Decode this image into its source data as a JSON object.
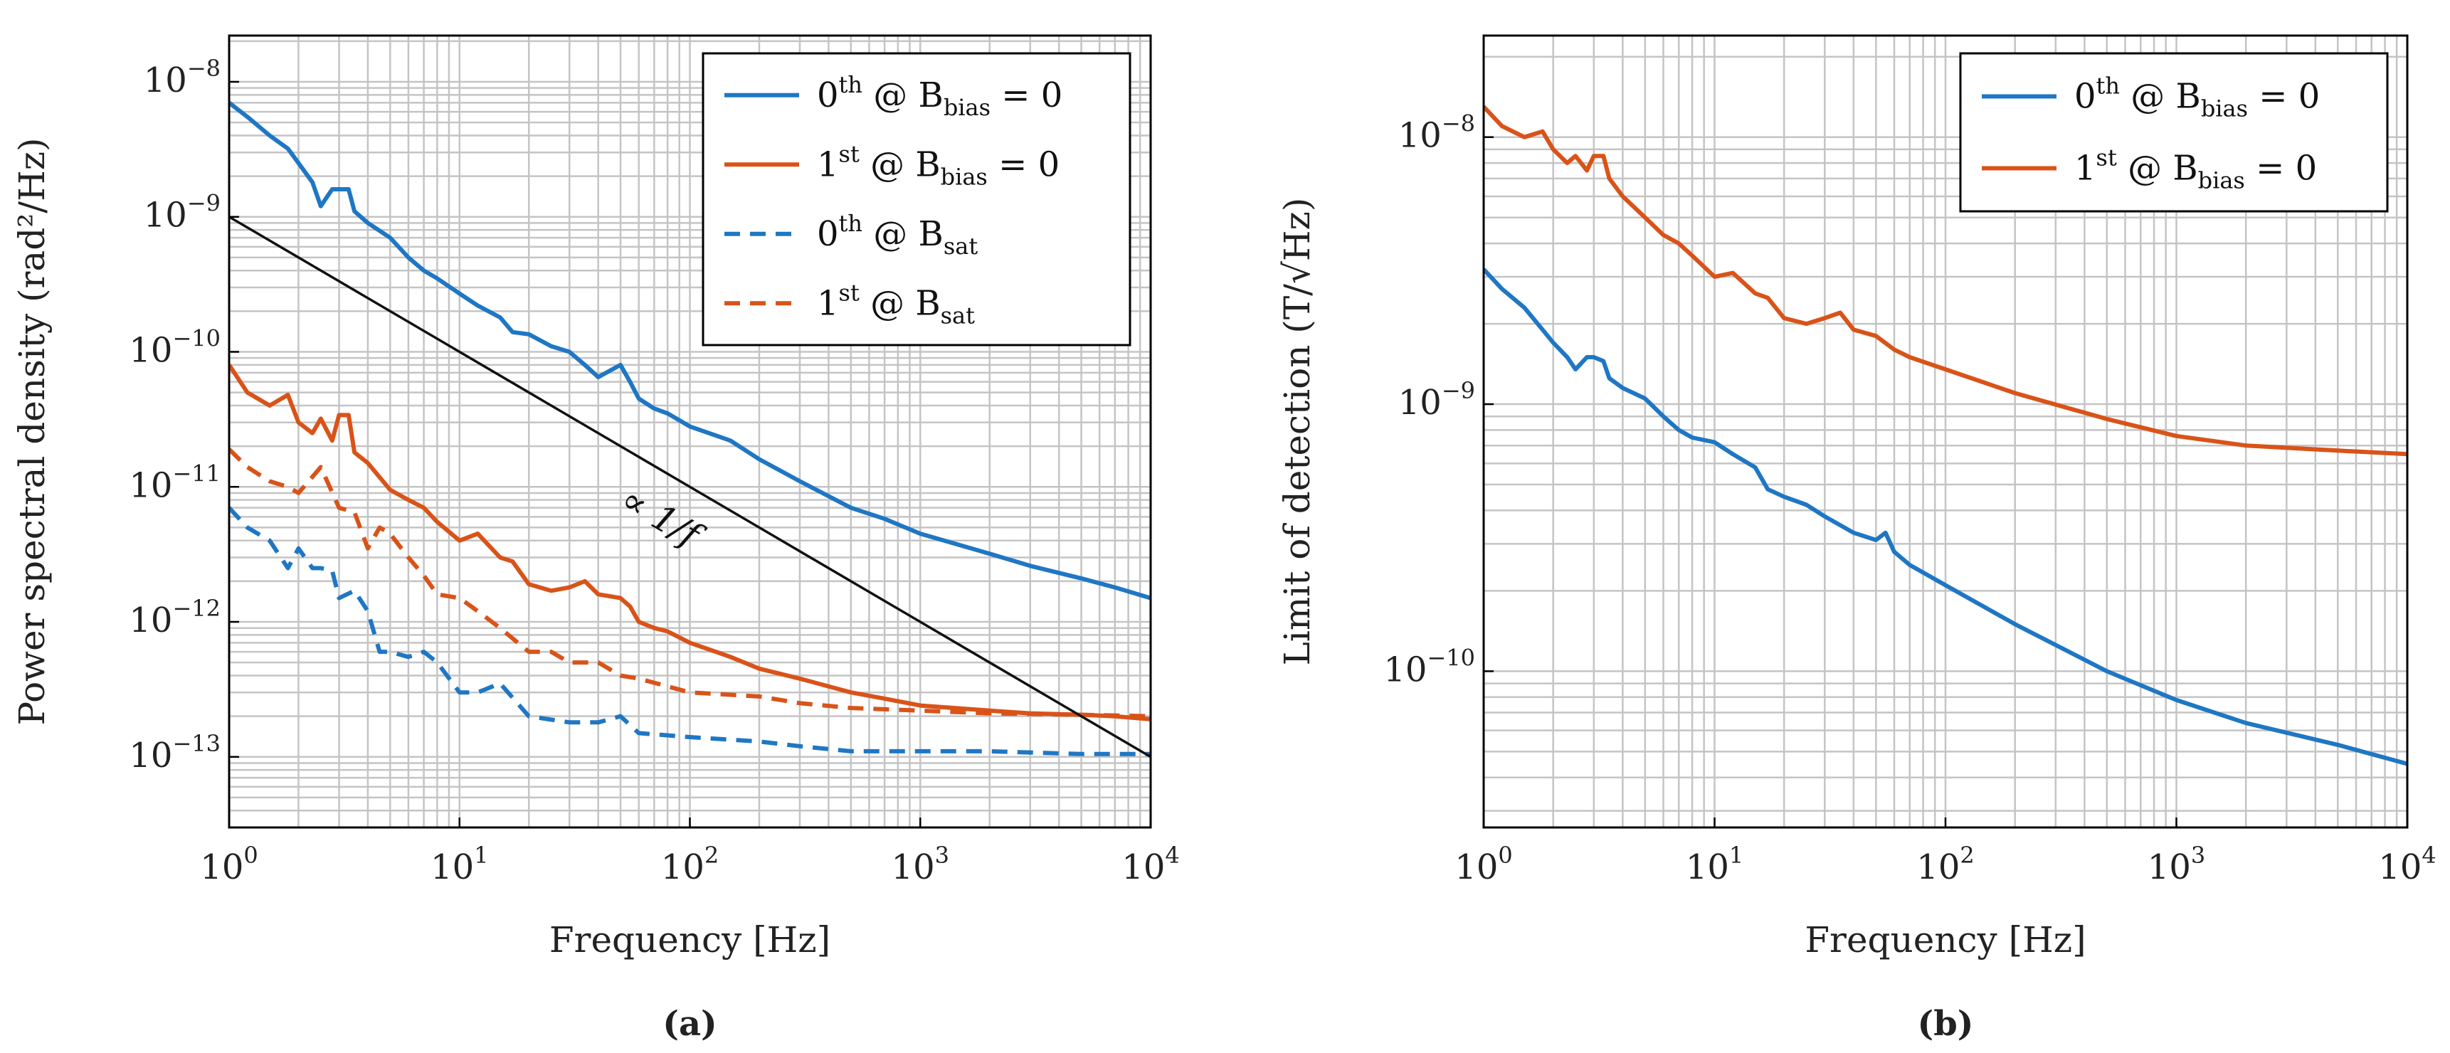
{
  "chart_data": [
    {
      "type": "line",
      "panel": "(a)",
      "caption": "(a)",
      "xlabel": "Frequency [Hz]",
      "ylabel": "Power spectral density (rad²/Hz)",
      "xscale": "log",
      "yscale": "log",
      "xlim": [
        1,
        10000
      ],
      "ylim": [
        3e-14,
        2.2e-08
      ],
      "grid": true,
      "legend_position": "top-right",
      "x_ticks": [
        {
          "value": 1,
          "base": "10",
          "exp": "0"
        },
        {
          "value": 10,
          "base": "10",
          "exp": "1"
        },
        {
          "value": 100,
          "base": "10",
          "exp": "2"
        },
        {
          "value": 1000,
          "base": "10",
          "exp": "3"
        },
        {
          "value": 10000,
          "base": "10",
          "exp": "4"
        }
      ],
      "y_ticks": [
        {
          "value": 1e-13,
          "base": "10",
          "exp": "−13"
        },
        {
          "value": 1e-12,
          "base": "10",
          "exp": "−12"
        },
        {
          "value": 1e-11,
          "base": "10",
          "exp": "−11"
        },
        {
          "value": 1e-10,
          "base": "10",
          "exp": "−10"
        },
        {
          "value": 1e-09,
          "base": "10",
          "exp": "−9"
        },
        {
          "value": 1e-08,
          "base": "10",
          "exp": "−8"
        }
      ],
      "annotation": {
        "text": "∝ 1/f",
        "x": 70,
        "y": 5e-12
      },
      "series": [
        {
          "name": "0th @ B_bias = 0",
          "legend": {
            "main": "0",
            "sup": "th",
            "mid": " @ B",
            "sub": "bias",
            "tail": " = 0"
          },
          "color": "#1f77c4",
          "dash": "solid",
          "in_legend": true,
          "x": [
            1,
            1.2,
            1.5,
            1.8,
            2.0,
            2.3,
            2.5,
            2.8,
            3.0,
            3.3,
            3.5,
            4.0,
            5.0,
            6.0,
            7.0,
            8.0,
            10,
            12,
            15,
            17,
            20,
            25,
            30,
            35,
            40,
            50,
            55,
            60,
            70,
            80,
            100,
            150,
            200,
            300,
            500,
            700,
            1000,
            2000,
            3000,
            5000,
            7000,
            10000
          ],
          "y": [
            7e-09,
            5.5e-09,
            4e-09,
            3.2e-09,
            2.5e-09,
            1.8e-09,
            1.2e-09,
            1.6e-09,
            1.6e-09,
            1.6e-09,
            1.1e-09,
            9e-10,
            7e-10,
            5e-10,
            4e-10,
            3.5e-10,
            2.7e-10,
            2.2e-10,
            1.8e-10,
            1.4e-10,
            1.35e-10,
            1.1e-10,
            1e-10,
            8e-11,
            6.5e-11,
            8e-11,
            6e-11,
            4.5e-11,
            3.8e-11,
            3.5e-11,
            2.8e-11,
            2.2e-11,
            1.6e-11,
            1.1e-11,
            7e-12,
            5.8e-12,
            4.5e-12,
            3.2e-12,
            2.6e-12,
            2.1e-12,
            1.8e-12,
            1.5e-12
          ]
        },
        {
          "name": "1st @ B_bias = 0",
          "legend": {
            "main": "1",
            "sup": "st",
            "mid": " @ B",
            "sub": "bias",
            "tail": " = 0"
          },
          "color": "#d95319",
          "dash": "solid",
          "in_legend": true,
          "x": [
            1,
            1.2,
            1.5,
            1.8,
            2.0,
            2.3,
            2.5,
            2.8,
            3.0,
            3.3,
            3.5,
            4.0,
            5.0,
            6.0,
            7.0,
            8.0,
            10,
            12,
            15,
            17,
            20,
            25,
            30,
            35,
            40,
            50,
            55,
            60,
            70,
            80,
            100,
            150,
            200,
            300,
            500,
            700,
            1000,
            2000,
            3000,
            5000,
            7000,
            10000
          ],
          "y": [
            8e-11,
            5e-11,
            4e-11,
            4.8e-11,
            3e-11,
            2.5e-11,
            3.2e-11,
            2.2e-11,
            3.4e-11,
            3.4e-11,
            1.8e-11,
            1.5e-11,
            9.5e-12,
            8e-12,
            7e-12,
            5.5e-12,
            4e-12,
            4.5e-12,
            3e-12,
            2.8e-12,
            1.9e-12,
            1.7e-12,
            1.8e-12,
            2e-12,
            1.6e-12,
            1.5e-12,
            1.3e-12,
            1e-12,
            9e-13,
            8.5e-13,
            7e-13,
            5.5e-13,
            4.5e-13,
            3.8e-13,
            3e-13,
            2.7e-13,
            2.4e-13,
            2.2e-13,
            2.1e-13,
            2.05e-13,
            2e-13,
            1.9e-13
          ]
        },
        {
          "name": "0th @ B_sat",
          "legend": {
            "main": "0",
            "sup": "th",
            "mid": " @ B",
            "sub": "sat",
            "tail": ""
          },
          "color": "#1f77c4",
          "dash": "dashed",
          "in_legend": true,
          "x": [
            1,
            1.2,
            1.5,
            1.8,
            2.0,
            2.3,
            2.5,
            2.8,
            3.0,
            3.5,
            4.0,
            4.5,
            5.0,
            6.0,
            7.0,
            8.0,
            10,
            12,
            15,
            20,
            30,
            40,
            50,
            60,
            100,
            200,
            300,
            500,
            1000,
            2000,
            5000,
            10000
          ],
          "y": [
            7e-12,
            5e-12,
            4e-12,
            2.5e-12,
            3.5e-12,
            2.5e-12,
            2.5e-12,
            2.4e-12,
            1.5e-12,
            1.7e-12,
            1.2e-12,
            6e-13,
            6e-13,
            5.5e-13,
            6e-13,
            5e-13,
            3e-13,
            3e-13,
            3.5e-13,
            2e-13,
            1.8e-13,
            1.8e-13,
            2e-13,
            1.5e-13,
            1.4e-13,
            1.3e-13,
            1.2e-13,
            1.1e-13,
            1.1e-13,
            1.1e-13,
            1.05e-13,
            1.05e-13
          ]
        },
        {
          "name": "1st @ B_sat",
          "legend": {
            "main": "1",
            "sup": "st",
            "mid": " @ B",
            "sub": "sat",
            "tail": ""
          },
          "color": "#d95319",
          "dash": "dashed",
          "in_legend": true,
          "x": [
            1,
            1.2,
            1.5,
            1.8,
            2.0,
            2.5,
            3.0,
            3.5,
            4.0,
            4.5,
            5.0,
            6.0,
            7.0,
            8.0,
            10,
            12,
            15,
            20,
            25,
            30,
            40,
            50,
            60,
            100,
            200,
            300,
            500,
            1000,
            2000,
            5000,
            10000
          ],
          "y": [
            1.9e-11,
            1.4e-11,
            1.1e-11,
            1e-11,
            9e-12,
            1.4e-11,
            7e-12,
            6.5e-12,
            3.5e-12,
            5e-12,
            4.5e-12,
            3e-12,
            2.2e-12,
            1.6e-12,
            1.5e-12,
            1.2e-12,
            9e-13,
            6e-13,
            6e-13,
            5e-13,
            5e-13,
            4e-13,
            3.8e-13,
            3e-13,
            2.8e-13,
            2.5e-13,
            2.3e-13,
            2.2e-13,
            2.1e-13,
            2.05e-13,
            2e-13
          ]
        },
        {
          "name": "∝ 1/f reference",
          "color": "#111111",
          "dash": "solid",
          "in_legend": false,
          "x": [
            1,
            10000
          ],
          "y": [
            1e-09,
            1e-13
          ]
        }
      ]
    },
    {
      "type": "line",
      "panel": "(b)",
      "caption": "(b)",
      "xlabel": "Frequency [Hz]",
      "ylabel": "Limit of detection (T/√Hz)",
      "xscale": "log",
      "yscale": "log",
      "xlim": [
        1,
        10000
      ],
      "ylim": [
        2.6e-11,
        2.4e-08
      ],
      "grid": true,
      "legend_position": "top-right",
      "x_ticks": [
        {
          "value": 1,
          "base": "10",
          "exp": "0"
        },
        {
          "value": 10,
          "base": "10",
          "exp": "1"
        },
        {
          "value": 100,
          "base": "10",
          "exp": "2"
        },
        {
          "value": 1000,
          "base": "10",
          "exp": "3"
        },
        {
          "value": 10000,
          "base": "10",
          "exp": "4"
        }
      ],
      "y_ticks": [
        {
          "value": 1e-10,
          "base": "10",
          "exp": "−10"
        },
        {
          "value": 1e-09,
          "base": "10",
          "exp": "−9"
        },
        {
          "value": 1e-08,
          "base": "10",
          "exp": "−8"
        }
      ],
      "series": [
        {
          "name": "0th @ B_bias = 0",
          "legend": {
            "main": "0",
            "sup": "th",
            "mid": " @ B",
            "sub": "bias",
            "tail": " = 0"
          },
          "color": "#1f77c4",
          "dash": "solid",
          "in_legend": true,
          "x": [
            1,
            1.2,
            1.5,
            1.8,
            2.0,
            2.3,
            2.5,
            2.8,
            3.0,
            3.3,
            3.5,
            4.0,
            5.0,
            6.0,
            7.0,
            8.0,
            10,
            12,
            15,
            17,
            20,
            25,
            30,
            40,
            50,
            55,
            60,
            70,
            100,
            200,
            500,
            1000,
            2000,
            5000,
            10000
          ],
          "y": [
            3.2e-09,
            2.7e-09,
            2.3e-09,
            1.9e-09,
            1.7e-09,
            1.5e-09,
            1.35e-09,
            1.5e-09,
            1.5e-09,
            1.45e-09,
            1.25e-09,
            1.15e-09,
            1.05e-09,
            9e-10,
            8e-10,
            7.5e-10,
            7.2e-10,
            6.5e-10,
            5.8e-10,
            4.8e-10,
            4.5e-10,
            4.2e-10,
            3.8e-10,
            3.3e-10,
            3.1e-10,
            3.3e-10,
            2.8e-10,
            2.5e-10,
            2.1e-10,
            1.5e-10,
            1e-10,
            7.8e-11,
            6.4e-11,
            5.3e-11,
            4.5e-11
          ]
        },
        {
          "name": "1st @ B_bias = 0",
          "legend": {
            "main": "1",
            "sup": "st",
            "mid": " @ B",
            "sub": "bias",
            "tail": " = 0"
          },
          "color": "#d95319",
          "dash": "solid",
          "in_legend": true,
          "x": [
            1,
            1.2,
            1.5,
            1.8,
            2.0,
            2.3,
            2.5,
            2.8,
            3.0,
            3.3,
            3.5,
            4.0,
            5.0,
            6.0,
            7.0,
            8.0,
            10,
            12,
            15,
            17,
            20,
            25,
            30,
            35,
            40,
            50,
            60,
            70,
            100,
            200,
            500,
            1000,
            2000,
            5000,
            10000
          ],
          "y": [
            1.3e-08,
            1.1e-08,
            1e-08,
            1.05e-08,
            9e-09,
            8e-09,
            8.5e-09,
            7.5e-09,
            8.5e-09,
            8.5e-09,
            7e-09,
            6e-09,
            5e-09,
            4.3e-09,
            4e-09,
            3.6e-09,
            3e-09,
            3.1e-09,
            2.6e-09,
            2.5e-09,
            2.1e-09,
            2e-09,
            2.1e-09,
            2.2e-09,
            1.9e-09,
            1.8e-09,
            1.6e-09,
            1.5e-09,
            1.35e-09,
            1.1e-09,
            8.8e-10,
            7.6e-10,
            7e-10,
            6.7e-10,
            6.5e-10
          ]
        }
      ]
    }
  ]
}
